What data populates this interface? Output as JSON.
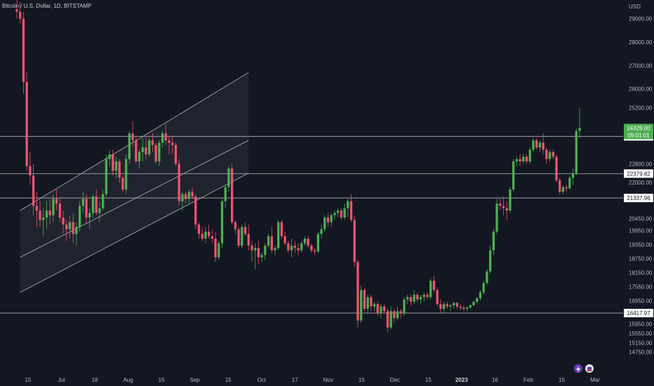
{
  "header": {
    "title": "Bitcoin / U.S. Dollar, 1D, BITSTAMP",
    "currency": "USD"
  },
  "colors": {
    "background": "#131722",
    "up": "#4caf50",
    "down": "#ef5370",
    "line": "#b2b5be",
    "channel_fill": "#2a2e39"
  },
  "price_tags": {
    "current": "24329.00",
    "countdown": "09:01:01"
  },
  "icons": [
    "lightning-icon",
    "flag-icon"
  ],
  "chart_data": {
    "type": "candlestick",
    "title": "Bitcoin / U.S. Dollar, 1D, BITSTAMP",
    "ylabel": "USD",
    "ylim": [
      14500,
      29800
    ],
    "y_ticks": [
      29000.0,
      28000.0,
      27000.0,
      26000.0,
      25200.0,
      22800.0,
      22000.0,
      20450.0,
      19950.0,
      19350.0,
      18750.0,
      18150.0,
      17550.0,
      16950.0,
      15950.0,
      15550.0,
      15150.0,
      14750.0
    ],
    "x_ticks": [
      "15",
      "Jul",
      "18",
      "Aug",
      "15",
      "Sep",
      "15",
      "Oct",
      "17",
      "Nov",
      "15",
      "Dec",
      "15",
      "2023",
      "16",
      "Feb",
      "15",
      "Mar"
    ],
    "x_tick_bold": "2023",
    "horizontal_levels": [
      23970.11,
      22379.82,
      21337.96,
      16417.97
    ],
    "channel": {
      "upper": [
        [
          1,
          20800
        ],
        [
          70,
          26700
        ]
      ],
      "middle": [
        [
          1,
          18800
        ],
        [
          70,
          23800
        ]
      ],
      "lower": [
        [
          1,
          17300
        ],
        [
          70,
          22400
        ]
      ]
    },
    "series": [
      {
        "name": "BTCUSD",
        "ohlc": [
          [
            29400,
            29800,
            29000,
            29300
          ],
          [
            29300,
            29700,
            28800,
            29000
          ],
          [
            29000,
            29300,
            25800,
            26300
          ],
          [
            26300,
            26700,
            22500,
            22700
          ],
          [
            22700,
            23300,
            21900,
            22300
          ],
          [
            22300,
            22800,
            20600,
            21000
          ],
          [
            21000,
            21600,
            20100,
            20800
          ],
          [
            20800,
            21200,
            20100,
            20400
          ],
          [
            20400,
            20900,
            19700,
            20500
          ],
          [
            20500,
            21200,
            20000,
            20800
          ],
          [
            20800,
            21300,
            20200,
            20600
          ],
          [
            20600,
            21500,
            20300,
            21300
          ],
          [
            21300,
            21700,
            20800,
            21100
          ],
          [
            21100,
            21300,
            20300,
            20500
          ],
          [
            20500,
            20800,
            19800,
            20200
          ],
          [
            20200,
            20400,
            19500,
            20000
          ],
          [
            20000,
            20600,
            19600,
            20300
          ],
          [
            20300,
            20700,
            19400,
            19800
          ],
          [
            19800,
            20300,
            19300,
            20100
          ],
          [
            20100,
            21200,
            19900,
            21000
          ],
          [
            21000,
            21600,
            20700,
            21300
          ],
          [
            21300,
            21500,
            20300,
            20500
          ],
          [
            20500,
            20900,
            20000,
            20700
          ],
          [
            20700,
            21500,
            20500,
            21400
          ],
          [
            21400,
            21700,
            20600,
            20700
          ],
          [
            20700,
            21200,
            20300,
            20900
          ],
          [
            20900,
            21700,
            20800,
            21500
          ],
          [
            21500,
            23200,
            21400,
            23000
          ],
          [
            23000,
            23400,
            22700,
            23200
          ],
          [
            23200,
            23400,
            22300,
            22500
          ],
          [
            22500,
            23100,
            22200,
            22900
          ],
          [
            22900,
            23000,
            22000,
            22200
          ],
          [
            22200,
            22300,
            21600,
            21700
          ],
          [
            21700,
            23200,
            21500,
            23000
          ],
          [
            23000,
            24200,
            22800,
            24100
          ],
          [
            24100,
            24600,
            23500,
            23800
          ],
          [
            23800,
            24000,
            22800,
            22900
          ],
          [
            22900,
            23400,
            22600,
            23300
          ],
          [
            23300,
            23900,
            22900,
            23500
          ],
          [
            23500,
            23900,
            23000,
            23200
          ],
          [
            23200,
            23900,
            23100,
            23800
          ],
          [
            23800,
            24100,
            23300,
            23600
          ],
          [
            23600,
            23700,
            22800,
            22900
          ],
          [
            22900,
            23800,
            22700,
            23700
          ],
          [
            23700,
            24200,
            23500,
            24100
          ],
          [
            24100,
            24500,
            23600,
            23800
          ],
          [
            23800,
            24000,
            23200,
            23700
          ],
          [
            23700,
            24000,
            23200,
            23600
          ],
          [
            23600,
            23700,
            22700,
            22800
          ],
          [
            22800,
            23000,
            21000,
            21200
          ],
          [
            21200,
            21600,
            20800,
            21500
          ],
          [
            21500,
            21600,
            21100,
            21300
          ],
          [
            21300,
            21700,
            21100,
            21600
          ],
          [
            21600,
            21800,
            21300,
            21400
          ],
          [
            21400,
            21500,
            20000,
            20200
          ],
          [
            20200,
            20300,
            19600,
            19800
          ],
          [
            19800,
            20100,
            19500,
            19600
          ],
          [
            19600,
            20100,
            19400,
            19900
          ],
          [
            19900,
            20200,
            19600,
            19700
          ],
          [
            19700,
            20000,
            19400,
            19600
          ],
          [
            19600,
            19900,
            18600,
            18800
          ],
          [
            18800,
            19500,
            18700,
            19400
          ],
          [
            19400,
            21300,
            19200,
            21200
          ],
          [
            21200,
            21900,
            20900,
            21800
          ],
          [
            21800,
            22700,
            21600,
            22600
          ],
          [
            22600,
            22800,
            20200,
            20300
          ],
          [
            20300,
            20400,
            19800,
            20000
          ],
          [
            20000,
            20100,
            19200,
            19300
          ],
          [
            19300,
            20200,
            19200,
            20100
          ],
          [
            20100,
            20300,
            19700,
            19800
          ],
          [
            19800,
            20200,
            19100,
            19300
          ],
          [
            19300,
            19500,
            18600,
            19100
          ],
          [
            19100,
            19400,
            18300,
            19200
          ],
          [
            19200,
            19500,
            18500,
            18800
          ],
          [
            18800,
            19000,
            18600,
            18900
          ],
          [
            18900,
            19400,
            18700,
            19300
          ],
          [
            19300,
            19800,
            19200,
            19700
          ],
          [
            19700,
            20100,
            19000,
            19100
          ],
          [
            19100,
            19300,
            18900,
            19200
          ],
          [
            19200,
            20400,
            19100,
            20300
          ],
          [
            20300,
            20400,
            19600,
            19700
          ],
          [
            19700,
            19900,
            19300,
            19400
          ],
          [
            19400,
            19500,
            19000,
            19100
          ],
          [
            19100,
            19600,
            18800,
            19300
          ],
          [
            19300,
            19500,
            19000,
            19200
          ],
          [
            19200,
            19400,
            18900,
            19100
          ],
          [
            19100,
            19500,
            19000,
            19400
          ],
          [
            19400,
            19700,
            19300,
            19600
          ],
          [
            19600,
            19700,
            19200,
            19300
          ],
          [
            19300,
            19400,
            19000,
            19100
          ],
          [
            19100,
            19200,
            18900,
            19050
          ],
          [
            19050,
            19900,
            19000,
            19800
          ],
          [
            19800,
            20200,
            19600,
            20000
          ],
          [
            20000,
            20600,
            19900,
            20500
          ],
          [
            20500,
            20700,
            20100,
            20300
          ],
          [
            20300,
            20700,
            20100,
            20600
          ],
          [
            20600,
            20800,
            20400,
            20700
          ],
          [
            20700,
            20900,
            20500,
            20800
          ],
          [
            20800,
            20900,
            20400,
            20500
          ],
          [
            20500,
            21100,
            20400,
            20900
          ],
          [
            20900,
            21300,
            20500,
            21200
          ],
          [
            21200,
            21500,
            20300,
            20400
          ],
          [
            20400,
            20600,
            18400,
            18600
          ],
          [
            18600,
            18700,
            15800,
            16100
          ],
          [
            16100,
            17600,
            16000,
            17400
          ],
          [
            17400,
            17500,
            16500,
            16600
          ],
          [
            16600,
            17200,
            16400,
            17100
          ],
          [
            17100,
            17200,
            16500,
            16700
          ],
          [
            16700,
            16900,
            16500,
            16800
          ],
          [
            16800,
            16900,
            16300,
            16400
          ],
          [
            16400,
            16800,
            16200,
            16700
          ],
          [
            16700,
            16800,
            16400,
            16500
          ],
          [
            16500,
            16600,
            15600,
            15800
          ],
          [
            15800,
            16700,
            15700,
            16500
          ],
          [
            16500,
            16600,
            16000,
            16200
          ],
          [
            16200,
            16700,
            16100,
            16500
          ],
          [
            16500,
            16600,
            16200,
            16400
          ],
          [
            16400,
            17100,
            16300,
            17000
          ],
          [
            17000,
            17200,
            16800,
            17100
          ],
          [
            17100,
            17200,
            16700,
            16900
          ],
          [
            16900,
            17400,
            16800,
            17200
          ],
          [
            17200,
            17300,
            16900,
            17000
          ],
          [
            17000,
            17200,
            16800,
            17100
          ],
          [
            17100,
            17300,
            16900,
            17200
          ],
          [
            17200,
            17300,
            17000,
            17100
          ],
          [
            17100,
            17900,
            17000,
            17800
          ],
          [
            17800,
            18000,
            17300,
            17400
          ],
          [
            17400,
            17500,
            16700,
            16800
          ],
          [
            16800,
            17000,
            16400,
            16600
          ],
          [
            16600,
            16900,
            16400,
            16800
          ],
          [
            16800,
            16900,
            16600,
            16700
          ],
          [
            16700,
            16800,
            16500,
            16750
          ],
          [
            16750,
            16900,
            16600,
            16850
          ],
          [
            16850,
            16900,
            16600,
            16700
          ],
          [
            16700,
            16800,
            16550,
            16650
          ],
          [
            16650,
            16750,
            16500,
            16600
          ],
          [
            16600,
            16700,
            16500,
            16650
          ],
          [
            16650,
            16800,
            16600,
            16750
          ],
          [
            16750,
            16950,
            16700,
            16900
          ],
          [
            16900,
            17100,
            16800,
            17050
          ],
          [
            17050,
            17400,
            16950,
            17300
          ],
          [
            17300,
            17800,
            17200,
            17700
          ],
          [
            17700,
            18300,
            17600,
            18200
          ],
          [
            18200,
            19300,
            18100,
            19100
          ],
          [
            19100,
            20000,
            18900,
            19900
          ],
          [
            19900,
            21300,
            19800,
            21100
          ],
          [
            21100,
            21300,
            20800,
            21000
          ],
          [
            21000,
            21400,
            20600,
            20900
          ],
          [
            20900,
            21200,
            20400,
            20800
          ],
          [
            20800,
            21800,
            20700,
            21700
          ],
          [
            21700,
            23000,
            21600,
            22900
          ],
          [
            22900,
            23100,
            22700,
            23000
          ],
          [
            23000,
            23200,
            22700,
            22900
          ],
          [
            22900,
            23200,
            22800,
            23100
          ],
          [
            23100,
            23200,
            22800,
            22900
          ],
          [
            22900,
            23500,
            22800,
            23400
          ],
          [
            23400,
            23900,
            23300,
            23800
          ],
          [
            23800,
            23900,
            23400,
            23500
          ],
          [
            23500,
            23800,
            23300,
            23700
          ],
          [
            23700,
            24100,
            23200,
            23400
          ],
          [
            23400,
            23500,
            22800,
            23000
          ],
          [
            23000,
            23400,
            22900,
            23300
          ],
          [
            23300,
            23400,
            23000,
            23100
          ],
          [
            23100,
            23200,
            22000,
            22100
          ],
          [
            22100,
            22200,
            21500,
            21600
          ],
          [
            21600,
            21900,
            21500,
            21800
          ],
          [
            21800,
            21900,
            21600,
            21750
          ],
          [
            21750,
            22300,
            21700,
            22200
          ],
          [
            22200,
            22600,
            21900,
            22400
          ],
          [
            22400,
            24300,
            22300,
            24200
          ],
          [
            24200,
            25200,
            23900,
            24329
          ]
        ]
      }
    ]
  }
}
